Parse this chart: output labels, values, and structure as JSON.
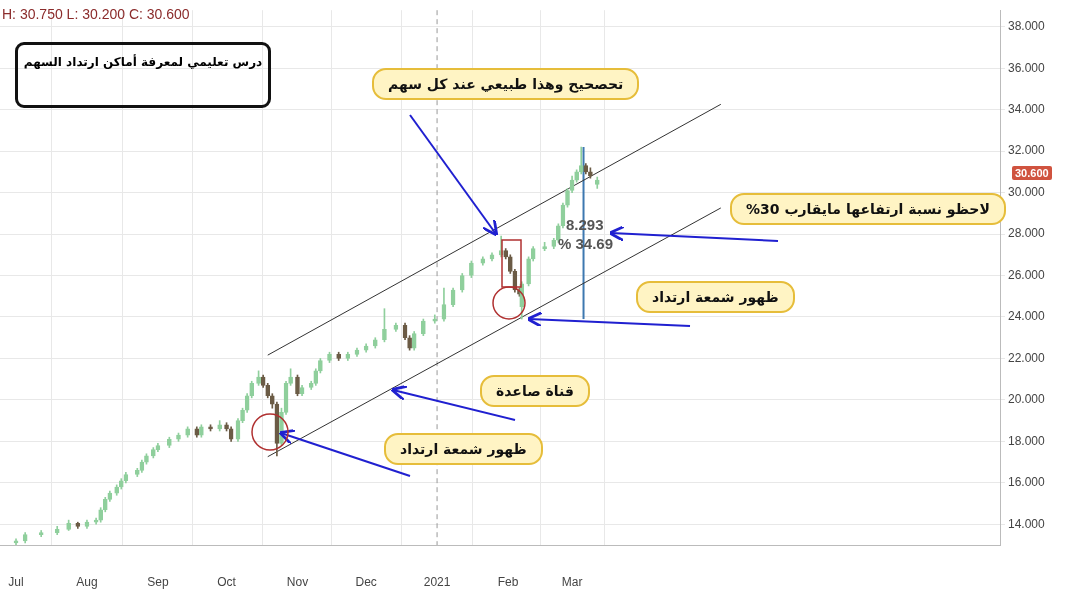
{
  "chart_data": {
    "type": "candlestick",
    "title": "درس تعليمي لمعرفة أماكن ارتداد السهم",
    "x": [
      "2020-07-01",
      "2020-07-05",
      "2020-07-12",
      "2020-07-19",
      "2020-07-24",
      "2020-07-28",
      "2020-08-01",
      "2020-08-05",
      "2020-08-07",
      "2020-08-09",
      "2020-08-11",
      "2020-08-14",
      "2020-08-16",
      "2020-08-18",
      "2020-08-23",
      "2020-08-25",
      "2020-08-27",
      "2020-08-30",
      "2020-09-01",
      "2020-09-06",
      "2020-09-10",
      "2020-09-14",
      "2020-09-18",
      "2020-09-20",
      "2020-09-24",
      "2020-09-28",
      "2020-10-01",
      "2020-10-03",
      "2020-10-06",
      "2020-10-08",
      "2020-10-10",
      "2020-10-12",
      "2020-10-15",
      "2020-10-17",
      "2020-10-19",
      "2020-10-21",
      "2020-10-23",
      "2020-10-25",
      "2020-10-27",
      "2020-10-29",
      "2020-11-01",
      "2020-11-03",
      "2020-11-07",
      "2020-11-09",
      "2020-11-11",
      "2020-11-15",
      "2020-11-19",
      "2020-11-23",
      "2020-11-27",
      "2020-12-01",
      "2020-12-05",
      "2020-12-09",
      "2020-12-14",
      "2020-12-18",
      "2020-12-20",
      "2020-12-22",
      "2020-12-26",
      "2020-12-31",
      "2021-01-04",
      "2021-01-08",
      "2021-01-12",
      "2021-01-16",
      "2021-01-21",
      "2021-01-25",
      "2021-01-29",
      "2021-01-31",
      "2021-02-02",
      "2021-02-04",
      "2021-02-06",
      "2021-02-07",
      "2021-02-10",
      "2021-02-12",
      "2021-02-17",
      "2021-02-21",
      "2021-02-23",
      "2021-02-25",
      "2021-02-27",
      "2021-03-01",
      "2021-03-03",
      "2021-03-05",
      "2021-03-07",
      "2021-03-09",
      "2021-03-12"
    ],
    "ohlc": [
      [
        13.1,
        13.3,
        13.0,
        13.2
      ],
      [
        13.2,
        13.6,
        13.1,
        13.5
      ],
      [
        13.5,
        13.7,
        13.4,
        13.6
      ],
      [
        13.6,
        13.9,
        13.5,
        13.75
      ],
      [
        13.75,
        14.2,
        13.7,
        14.05
      ],
      [
        14.05,
        14.1,
        13.8,
        13.9
      ],
      [
        13.9,
        14.2,
        13.8,
        14.1
      ],
      [
        14.1,
        14.3,
        14.0,
        14.2
      ],
      [
        14.2,
        14.8,
        14.1,
        14.7
      ],
      [
        14.7,
        15.3,
        14.6,
        15.2
      ],
      [
        15.2,
        15.6,
        15.1,
        15.5
      ],
      [
        15.5,
        15.9,
        15.4,
        15.8
      ],
      [
        15.8,
        16.2,
        15.7,
        16.1
      ],
      [
        16.1,
        16.5,
        16.0,
        16.4
      ],
      [
        16.4,
        16.7,
        16.3,
        16.6
      ],
      [
        16.6,
        17.1,
        16.5,
        17.0
      ],
      [
        17.0,
        17.4,
        16.9,
        17.3
      ],
      [
        17.3,
        17.7,
        17.2,
        17.6
      ],
      [
        17.6,
        17.9,
        17.5,
        17.8
      ],
      [
        17.8,
        18.2,
        17.7,
        18.1
      ],
      [
        18.1,
        18.4,
        18.0,
        18.3
      ],
      [
        18.3,
        18.7,
        18.2,
        18.6
      ],
      [
        18.6,
        18.7,
        18.2,
        18.3
      ],
      [
        18.3,
        18.8,
        18.2,
        18.7
      ],
      [
        18.7,
        18.8,
        18.5,
        18.6
      ],
      [
        18.6,
        19.0,
        18.5,
        18.8
      ],
      [
        18.8,
        18.9,
        18.5,
        18.6
      ],
      [
        18.6,
        18.7,
        18.0,
        18.1
      ],
      [
        18.1,
        19.1,
        18.0,
        19.0
      ],
      [
        19.0,
        19.6,
        18.9,
        19.5
      ],
      [
        19.5,
        20.3,
        19.4,
        20.2
      ],
      [
        20.2,
        20.9,
        20.1,
        20.8
      ],
      [
        20.8,
        21.4,
        20.7,
        21.1
      ],
      [
        21.1,
        21.2,
        20.6,
        20.7
      ],
      [
        20.7,
        20.8,
        20.1,
        20.2
      ],
      [
        20.2,
        20.3,
        19.6,
        19.8
      ],
      [
        19.8,
        19.9,
        17.3,
        17.9
      ],
      [
        17.9,
        19.6,
        17.8,
        19.4
      ],
      [
        19.4,
        20.9,
        19.3,
        20.8
      ],
      [
        20.8,
        21.5,
        20.7,
        21.1
      ],
      [
        21.1,
        21.2,
        20.2,
        20.3
      ],
      [
        20.3,
        20.7,
        20.2,
        20.6
      ],
      [
        20.6,
        20.9,
        20.5,
        20.8
      ],
      [
        20.8,
        21.5,
        20.7,
        21.4
      ],
      [
        21.4,
        22.0,
        21.3,
        21.9
      ],
      [
        21.9,
        22.3,
        21.8,
        22.2
      ],
      [
        22.2,
        22.3,
        21.9,
        22.0
      ],
      [
        22.0,
        22.3,
        21.9,
        22.2
      ],
      [
        22.2,
        22.5,
        22.1,
        22.4
      ],
      [
        22.4,
        22.7,
        22.3,
        22.6
      ],
      [
        22.6,
        23.0,
        22.5,
        22.9
      ],
      [
        22.9,
        24.4,
        22.8,
        23.4
      ],
      [
        23.4,
        23.7,
        23.3,
        23.6
      ],
      [
        23.6,
        23.7,
        22.9,
        23.0
      ],
      [
        23.0,
        23.1,
        22.4,
        22.5
      ],
      [
        22.5,
        23.3,
        22.4,
        23.2
      ],
      [
        23.2,
        23.9,
        23.1,
        23.8
      ],
      [
        23.8,
        24.1,
        23.7,
        23.9
      ],
      [
        23.9,
        25.4,
        23.8,
        24.6
      ],
      [
        24.6,
        25.4,
        24.5,
        25.3
      ],
      [
        25.3,
        26.1,
        25.2,
        26.0
      ],
      [
        26.0,
        26.7,
        25.9,
        26.6
      ],
      [
        26.6,
        26.9,
        26.5,
        26.8
      ],
      [
        26.8,
        27.1,
        26.7,
        27.0
      ],
      [
        27.0,
        27.9,
        26.9,
        27.2
      ],
      [
        27.2,
        27.3,
        26.8,
        26.9
      ],
      [
        26.9,
        27.0,
        26.1,
        26.2
      ],
      [
        26.2,
        26.3,
        25.2,
        25.3
      ],
      [
        25.3,
        25.4,
        25.0,
        25.1
      ],
      [
        24.5,
        25.7,
        23.9,
        25.6
      ],
      [
        25.6,
        26.9,
        25.5,
        26.8
      ],
      [
        26.8,
        27.4,
        26.7,
        27.3
      ],
      [
        27.3,
        27.6,
        27.2,
        27.4
      ],
      [
        27.4,
        27.8,
        27.3,
        27.7
      ],
      [
        27.7,
        28.5,
        27.6,
        28.4
      ],
      [
        28.4,
        29.5,
        28.3,
        29.4
      ],
      [
        29.4,
        30.2,
        29.3,
        30.1
      ],
      [
        30.1,
        30.8,
        30.0,
        30.6
      ],
      [
        30.6,
        31.1,
        30.5,
        31.0
      ],
      [
        31.0,
        32.2,
        30.9,
        31.3
      ],
      [
        31.3,
        31.4,
        30.9,
        31.0
      ],
      [
        31.0,
        31.2,
        30.7,
        30.8
      ],
      [
        30.4,
        30.75,
        30.2,
        30.6
      ]
    ],
    "colors": [
      "#8fcf9c",
      "#8fcf9c",
      "#8fcf9c",
      "#8fcf9c",
      "#8fcf9c",
      "#6b5b45",
      "#8fcf9c",
      "#8fcf9c",
      "#8fcf9c",
      "#8fcf9c",
      "#8fcf9c",
      "#8fcf9c",
      "#8fcf9c",
      "#8fcf9c",
      "#8fcf9c",
      "#8fcf9c",
      "#8fcf9c",
      "#8fcf9c",
      "#8fcf9c",
      "#8fcf9c",
      "#8fcf9c",
      "#8fcf9c",
      "#6b5b45",
      "#8fcf9c",
      "#6b5b45",
      "#8fcf9c",
      "#6b5b45",
      "#6b5b45",
      "#8fcf9c",
      "#8fcf9c",
      "#8fcf9c",
      "#8fcf9c",
      "#8fcf9c",
      "#6b5b45",
      "#6b5b45",
      "#6b5b45",
      "#6b5b45",
      "#8fcf9c",
      "#8fcf9c",
      "#8fcf9c",
      "#6b5b45",
      "#8fcf9c",
      "#8fcf9c",
      "#8fcf9c",
      "#8fcf9c",
      "#8fcf9c",
      "#6b5b45",
      "#8fcf9c",
      "#8fcf9c",
      "#8fcf9c",
      "#8fcf9c",
      "#8fcf9c",
      "#8fcf9c",
      "#6b5b45",
      "#6b5b45",
      "#8fcf9c",
      "#8fcf9c",
      "#8fcf9c",
      "#8fcf9c",
      "#8fcf9c",
      "#8fcf9c",
      "#8fcf9c",
      "#8fcf9c",
      "#8fcf9c",
      "#8fcf9c",
      "#6b5b45",
      "#6b5b45",
      "#6b5b45",
      "#6b5b45",
      "#8fcf9c",
      "#8fcf9c",
      "#8fcf9c",
      "#8fcf9c",
      "#8fcf9c",
      "#8fcf9c",
      "#8fcf9c",
      "#8fcf9c",
      "#8fcf9c",
      "#8fcf9c",
      "#8fcf9c",
      "#6b5b45",
      "#6b5b45",
      "#8fcf9c"
    ],
    "series": [
      {
        "type": "line",
        "x": [
          "2020-10-19",
          "2021-05-05"
        ],
        "values": [
          22.16,
          34.26
        ],
        "color": "#333333"
      },
      {
        "type": "line",
        "x": [
          "2020-10-19",
          "2021-05-05"
        ],
        "values": [
          17.26,
          29.26
        ],
        "color": "#333333"
      },
      {
        "type": "line",
        "x": [
          "2021-03-06",
          "2021-03-06"
        ],
        "values": [
          23.9,
          32.2
        ],
        "color": "#3d78b0"
      }
    ],
    "xlim": [
      "2020-06-24",
      "2021-09-04"
    ],
    "xticks": [
      {
        "value": "2020-07-01",
        "label": "Jul"
      },
      {
        "value": "2020-08-01",
        "label": "Aug"
      },
      {
        "value": "2020-09-01",
        "label": "Sep"
      },
      {
        "value": "2020-10-01",
        "label": "Oct"
      },
      {
        "value": "2020-11-01",
        "label": "Nov"
      },
      {
        "value": "2020-12-01",
        "label": "Dec"
      },
      {
        "value": "2021-01-01",
        "label": "2021"
      },
      {
        "value": "2021-02-01",
        "label": "Feb"
      },
      {
        "value": "2021-03-01",
        "label": "Mar"
      }
    ],
    "ylim": [
      13,
      38.8
    ],
    "yticks": [
      {
        "value": 14,
        "label": "14.000"
      },
      {
        "value": 16,
        "label": "16.000"
      },
      {
        "value": 18,
        "label": "18.000"
      },
      {
        "value": 20,
        "label": "20.000"
      },
      {
        "value": 22,
        "label": "22.000"
      },
      {
        "value": 24,
        "label": "24.000"
      },
      {
        "value": 26,
        "label": "26.000"
      },
      {
        "value": 28,
        "label": "28.000"
      },
      {
        "value": 30,
        "label": "30.000"
      },
      {
        "value": 32,
        "label": "32.000"
      },
      {
        "value": 34,
        "label": "34.000"
      },
      {
        "value": 36,
        "label": "36.000"
      },
      {
        "value": 38,
        "label": "38.000"
      }
    ],
    "grid": true,
    "ref_lines": [
      {
        "axis": "x",
        "value": "2021-01-01",
        "color": "#999999",
        "line_style": "dashed"
      }
    ],
    "annotations": [
      "H: 30.750 L: 30.200 C: 30.600",
      "تحصحيح وهذا طبيعي عند كل سهم",
      "لاحظو نسبة ارتفاعها مايقارب 30%",
      "ظهور شمعة ارتداد",
      "قناة صاعدة",
      "ظهور شمعة ارتداد",
      "8.293",
      "% 34.69",
      "30.600"
    ]
  }
}
